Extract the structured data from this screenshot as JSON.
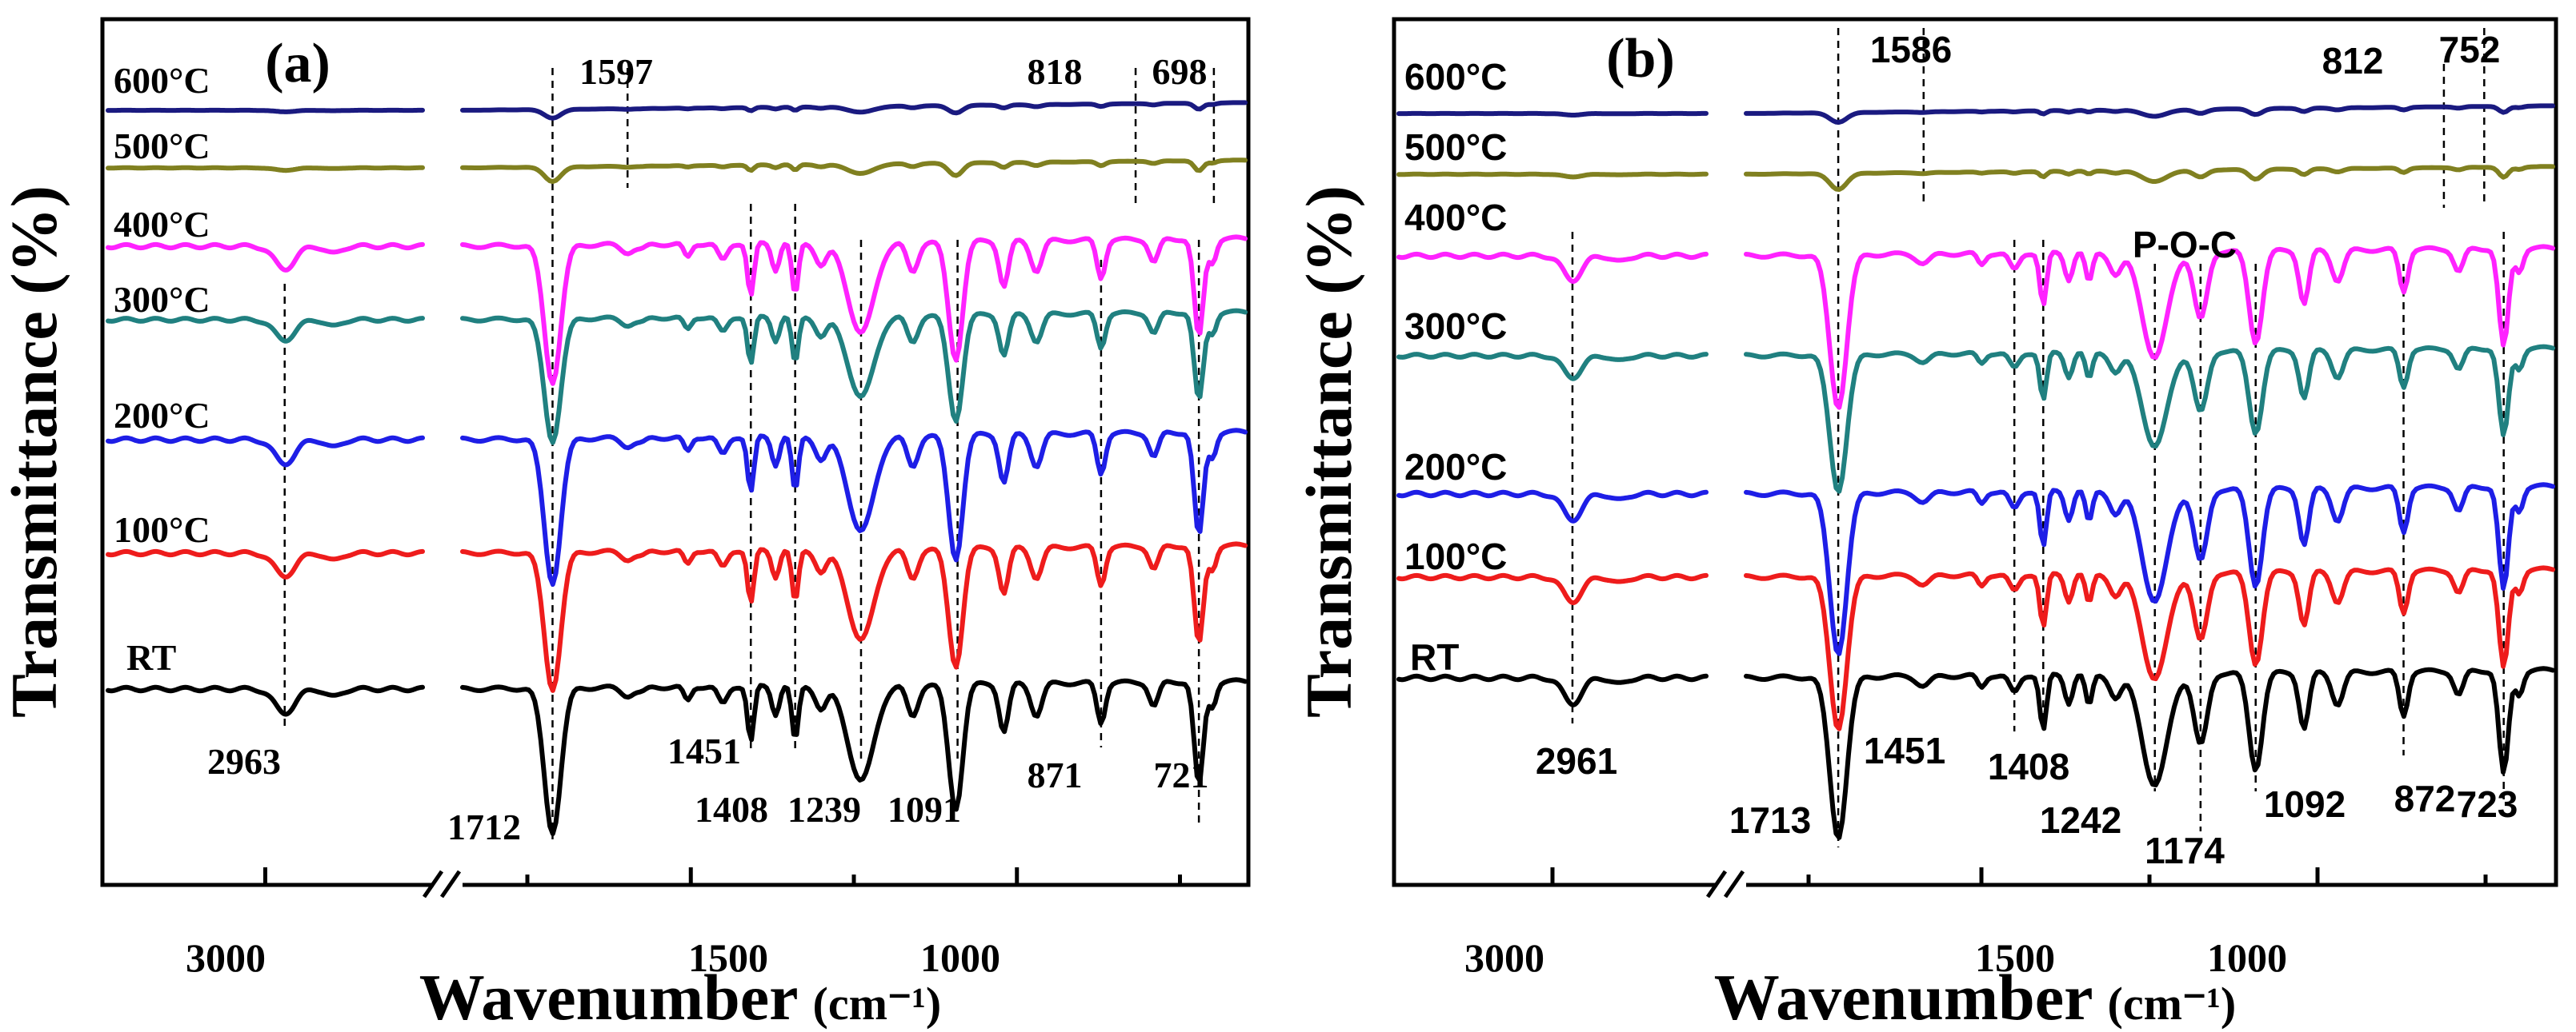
{
  "chart_data": [
    {
      "type": "line",
      "panel_label": "(a)",
      "xlabel": "Wavenumber",
      "xunit": "(cm⁻¹)",
      "ylabel": "Transmittance (%)",
      "x_break": true,
      "x_ticks": [
        "3000",
        "1500",
        "1000"
      ],
      "colors": {
        "600°C": "#1a1a80",
        "500°C": "#808020",
        "400°C": "#ff22ff",
        "300°C": "#208080",
        "200°C": "#1e1ee6",
        "100°C": "#ee1c1c",
        "RT": "#000000"
      },
      "series_names": [
        "600°C",
        "500°C",
        "400°C",
        "300°C",
        "200°C",
        "100°C",
        "RT"
      ],
      "peak_labels": [
        "1597",
        "818",
        "698",
        "2963",
        "1451",
        "1712",
        "1408",
        "1239",
        "1091",
        "871",
        "721"
      ]
    },
    {
      "type": "line",
      "panel_label": "(b)",
      "xlabel": "Wavenumber",
      "xunit": "(cm⁻¹)",
      "ylabel": "Transmittance (%)",
      "x_break": true,
      "x_ticks": [
        "3000",
        "1500",
        "1000"
      ],
      "colors": {
        "600°C": "#1a1a80",
        "500°C": "#808020",
        "400°C": "#ff22ff",
        "300°C": "#208080",
        "200°C": "#1e1ee6",
        "100°C": "#ee1c1c",
        "RT": "#000000"
      },
      "series_names": [
        "600°C",
        "500°C",
        "400°C",
        "300°C",
        "200°C",
        "100°C",
        "RT"
      ],
      "peak_labels": [
        "1586",
        "812",
        "752",
        "P-O-C",
        "2961",
        "1451",
        "1408",
        "1713",
        "1242",
        "1174",
        "1092",
        "872",
        "723"
      ]
    }
  ]
}
